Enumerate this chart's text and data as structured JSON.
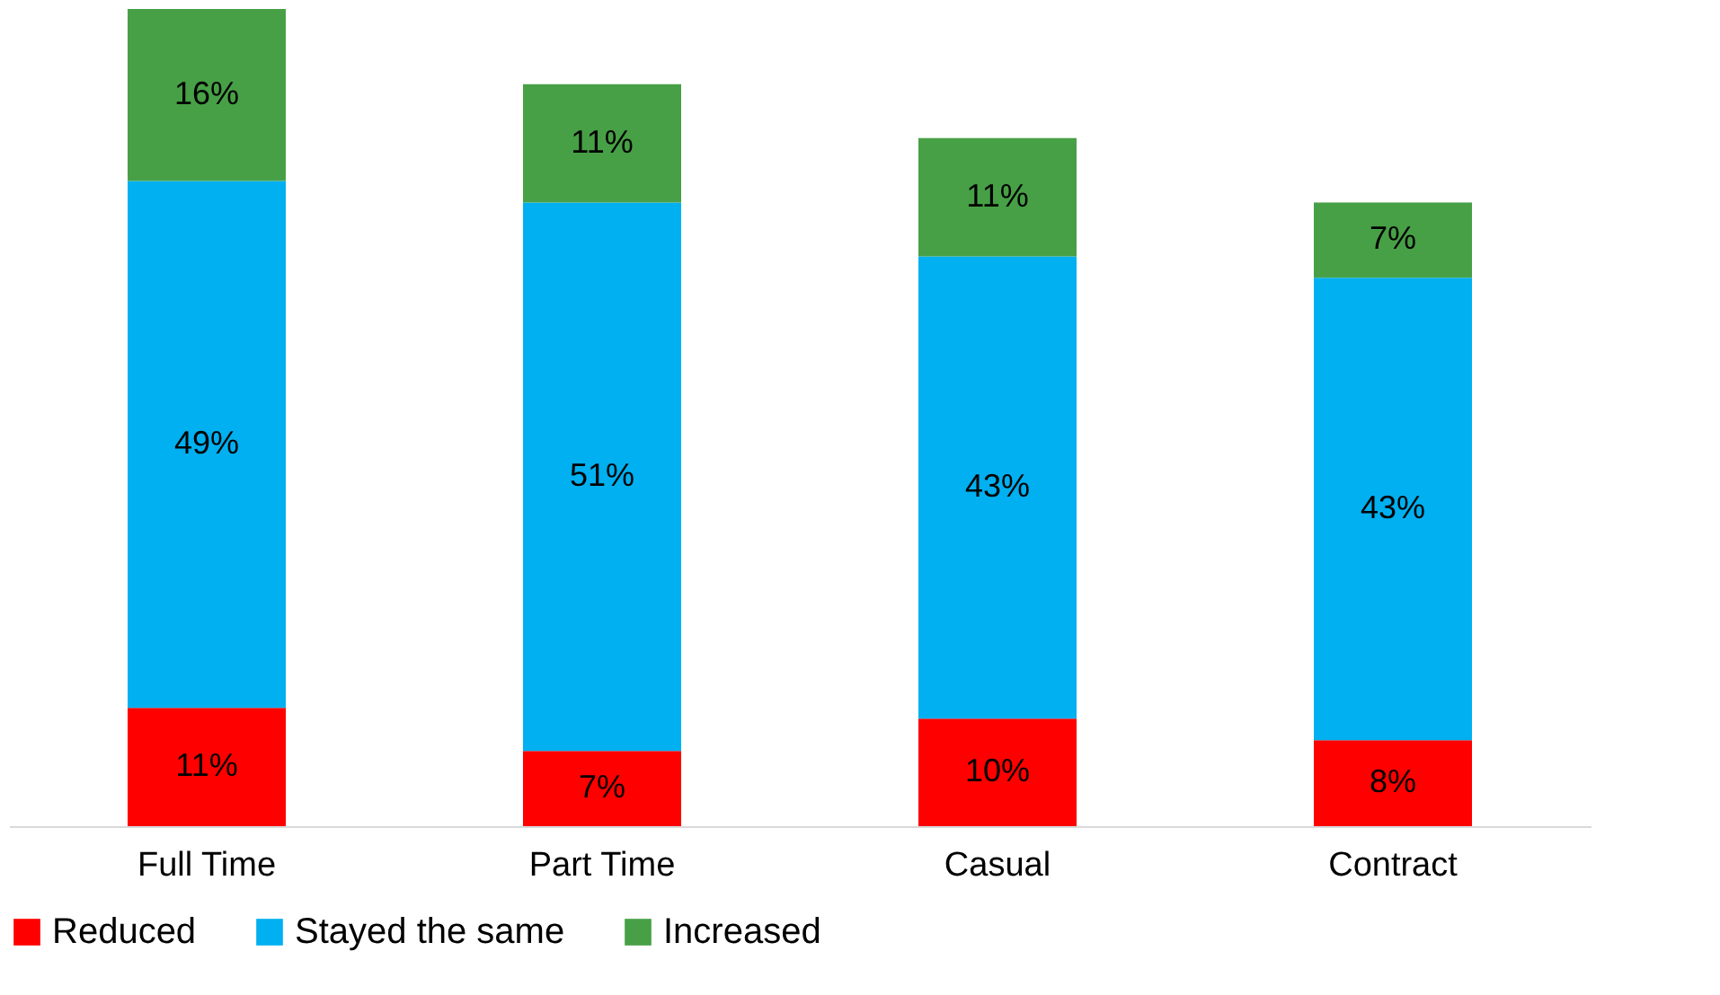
{
  "chart_data": {
    "type": "bar",
    "stacked": true,
    "categories": [
      "Full Time",
      "Part Time",
      "Casual",
      "Contract"
    ],
    "series": [
      {
        "name": "Reduced",
        "color": "#ff0000",
        "values": [
          11,
          7,
          10,
          8
        ],
        "value_labels": [
          "11%",
          "7%",
          "10%",
          "8%"
        ]
      },
      {
        "name": "Stayed the same",
        "color": "#00b0f0",
        "values": [
          49,
          51,
          43,
          43
        ],
        "value_labels": [
          "49%",
          "51%",
          "43%",
          "43%"
        ]
      },
      {
        "name": "Increased",
        "color": "#47a046",
        "values": [
          16,
          11,
          11,
          7
        ],
        "value_labels": [
          "16%",
          "11%",
          "11%",
          "7%"
        ]
      }
    ],
    "legend": "bottom",
    "grid": false
  }
}
